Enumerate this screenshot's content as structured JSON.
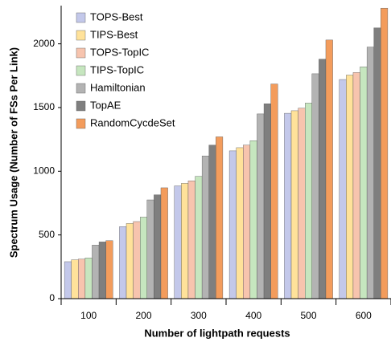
{
  "chart_data": {
    "type": "bar",
    "x_label": "Number of lightpath requests",
    "y_label": "Spectrum Usage (Number of FSs Per Link)",
    "categories": [
      "100",
      "200",
      "300",
      "400",
      "500",
      "600"
    ],
    "series": [
      {
        "name": "TOPS-Best",
        "color": "#c3c8ea",
        "values": [
          290,
          565,
          885,
          1160,
          1455,
          1720
        ]
      },
      {
        "name": "TIPS-Best",
        "color": "#ffe29a",
        "values": [
          305,
          590,
          905,
          1185,
          1475,
          1755
        ]
      },
      {
        "name": "TOPS-TopIC",
        "color": "#f7c4ae",
        "values": [
          310,
          605,
          925,
          1205,
          1495,
          1775
        ]
      },
      {
        "name": "TIPS-TopIC",
        "color": "#c6e6bf",
        "values": [
          320,
          640,
          960,
          1240,
          1535,
          1820
        ]
      },
      {
        "name": "Hamiltonian",
        "color": "#b3b3b3",
        "values": [
          420,
          775,
          1120,
          1450,
          1765,
          1975
        ]
      },
      {
        "name": "TopAE",
        "color": "#7f7f7f",
        "values": [
          445,
          815,
          1205,
          1530,
          1880,
          2125
        ]
      },
      {
        "name": "RandomCycdeSet",
        "color": "#f39c5c",
        "values": [
          455,
          870,
          1270,
          1685,
          2030,
          2280
        ]
      }
    ],
    "ylim": [
      0,
      2300
    ],
    "yticks": [
      0,
      500,
      1000,
      1500,
      2000
    ],
    "legend": "upper left"
  }
}
